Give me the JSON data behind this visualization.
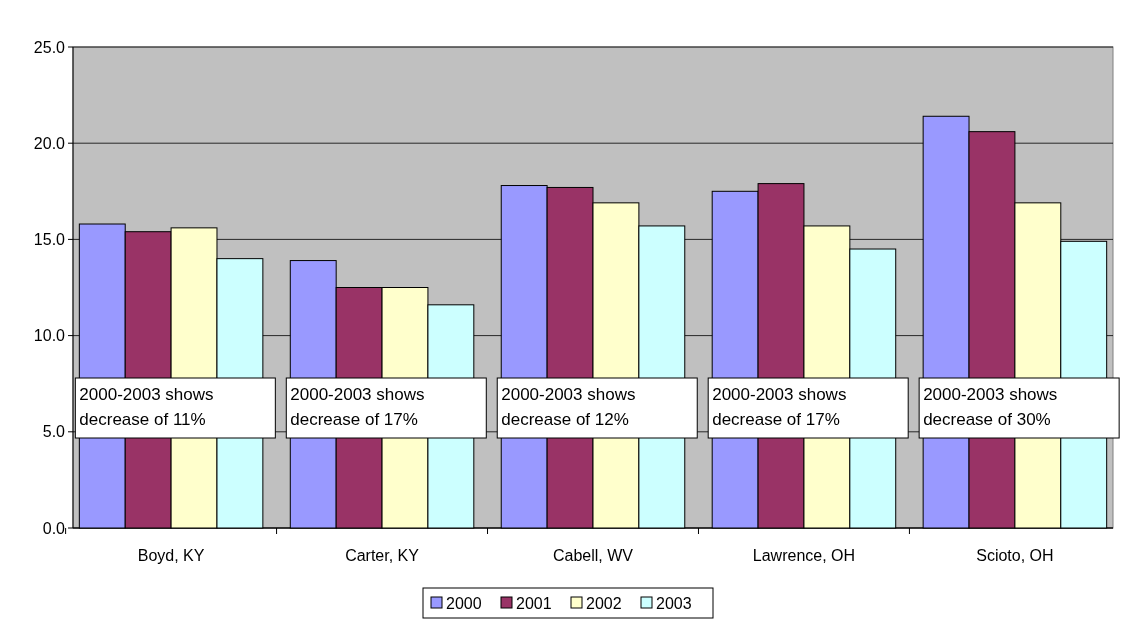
{
  "chart_data": {
    "type": "bar",
    "categories": [
      "Boyd, KY",
      "Carter, KY",
      "Cabell, WV",
      "Lawrence, OH",
      "Scioto, OH"
    ],
    "series": [
      {
        "name": "2000",
        "color": "#9999ff",
        "values": [
          15.8,
          13.9,
          17.8,
          17.5,
          21.4
        ]
      },
      {
        "name": "2001",
        "color": "#993366",
        "values": [
          15.4,
          12.5,
          17.7,
          17.9,
          20.6
        ]
      },
      {
        "name": "2002",
        "color": "#ffffcc",
        "values": [
          15.6,
          12.5,
          16.9,
          15.7,
          16.9
        ]
      },
      {
        "name": "2003",
        "color": "#ccffff",
        "values": [
          14.0,
          11.6,
          15.7,
          14.5,
          14.9
        ]
      }
    ],
    "ylim": [
      0,
      25
    ],
    "yticks": [
      {
        "value": 0,
        "label": "0.0"
      },
      {
        "value": 5,
        "label": "5.0"
      },
      {
        "value": 10,
        "label": "10.0"
      },
      {
        "value": 15,
        "label": "15.0"
      },
      {
        "value": 20,
        "label": "20.0"
      },
      {
        "value": 25,
        "label": "25.0"
      }
    ],
    "grid": "y",
    "legend": "bottom",
    "annotations": [
      "2000-2003 shows decrease of 11%",
      "2000-2003 shows decrease of 17%",
      "2000-2003 shows decrease of 12%",
      "2000-2003 shows decrease of 17%",
      "2000-2003 shows decrease of 30%"
    ]
  }
}
